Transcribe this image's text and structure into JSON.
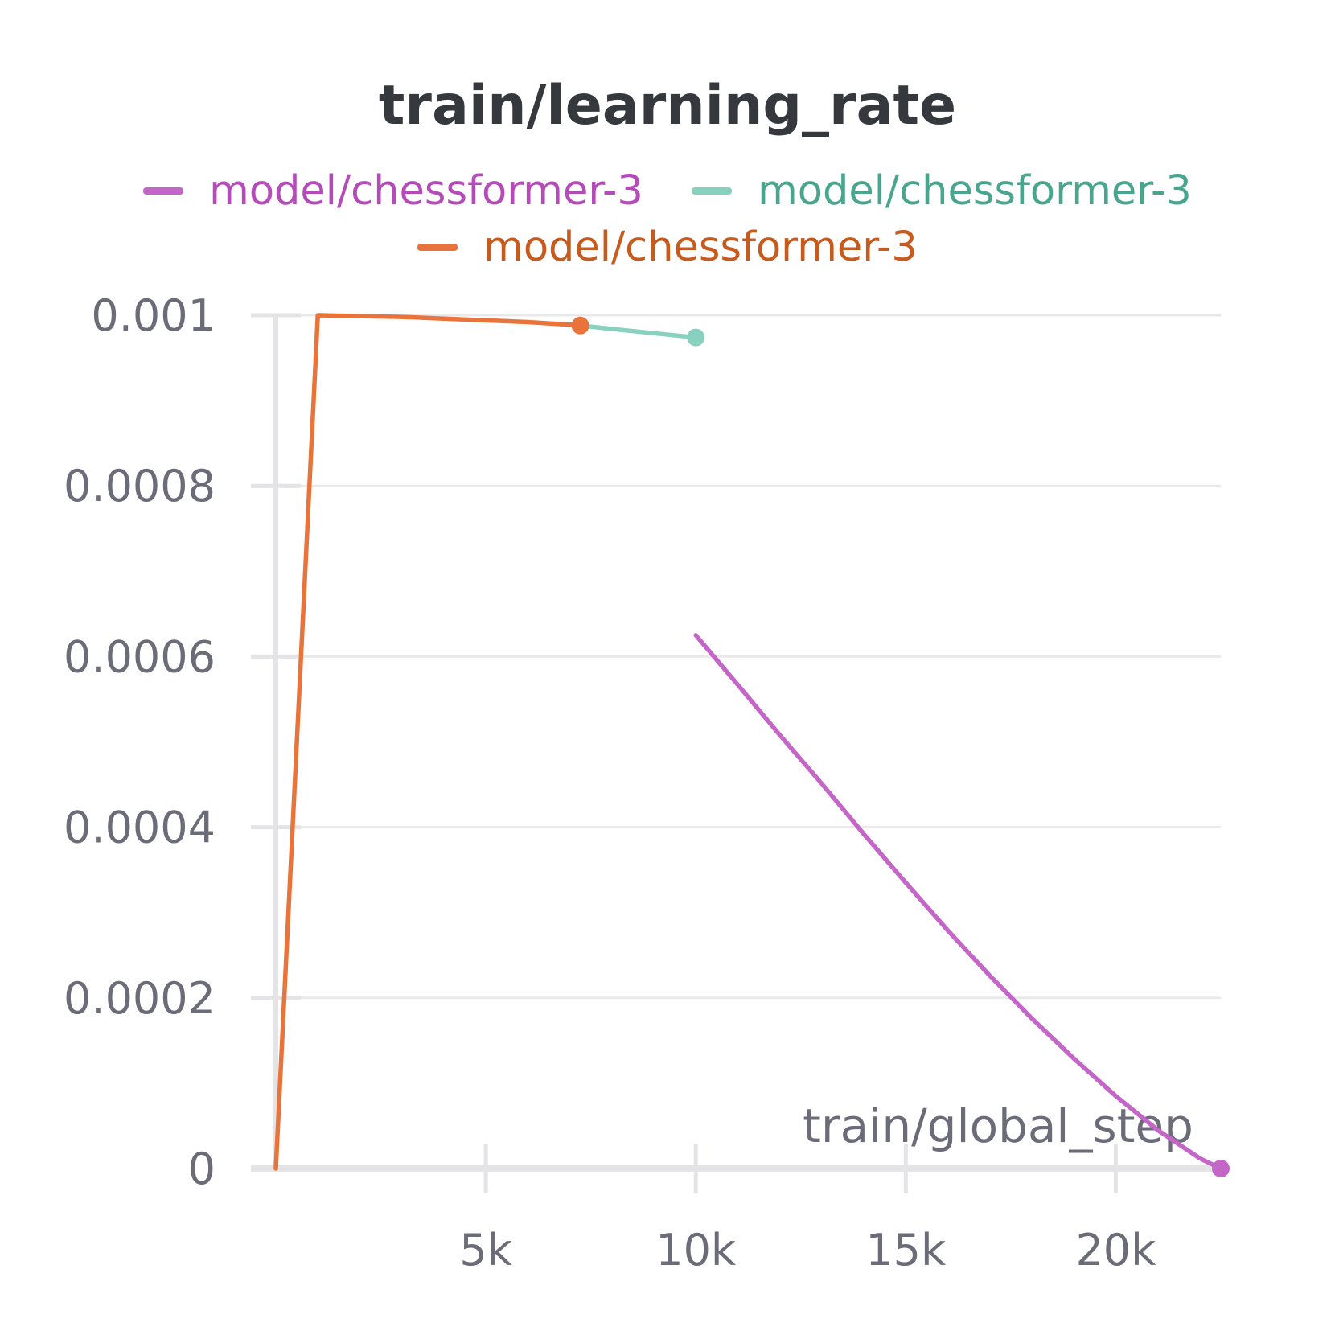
{
  "chart_data": {
    "type": "line",
    "title": "train/learning_rate",
    "xlabel": "train/global_step",
    "ylabel": "",
    "xlim": [
      0,
      22500
    ],
    "ylim": [
      0,
      0.001
    ],
    "x_ticks": [
      {
        "value": 5000,
        "label": "5k"
      },
      {
        "value": 10000,
        "label": "10k"
      },
      {
        "value": 15000,
        "label": "15k"
      },
      {
        "value": 20000,
        "label": "20k"
      }
    ],
    "y_ticks": [
      {
        "value": 0,
        "label": "0"
      },
      {
        "value": 0.0002,
        "label": "0.0002"
      },
      {
        "value": 0.0004,
        "label": "0.0004"
      },
      {
        "value": 0.0006,
        "label": "0.0006"
      },
      {
        "value": 0.0008,
        "label": "0.0008"
      },
      {
        "value": 0.001,
        "label": "0.001"
      }
    ],
    "grid": true,
    "legend_position": "top-center",
    "series": [
      {
        "name": "model/chessformer-3",
        "color": "#c466c8",
        "label_color": "#b44bb8",
        "end_marker": true,
        "x": [
          10000,
          11000,
          12000,
          13000,
          14000,
          15000,
          16000,
          17000,
          18000,
          19000,
          20000,
          21000,
          22000,
          22500
        ],
        "y": [
          0.000625,
          0.000567,
          0.000508,
          0.000451,
          0.000392,
          0.000335,
          0.000279,
          0.000226,
          0.000176,
          0.000129,
          8.5e-05,
          4.5e-05,
          1.2e-05,
          0.0
        ]
      },
      {
        "name": "model/chessformer-3",
        "color": "#88d1be",
        "label_color": "#4aa58e",
        "end_marker": true,
        "x": [
          7250,
          8000,
          9000,
          10000
        ],
        "y": [
          0.000988,
          0.000984,
          0.000979,
          0.000974
        ]
      },
      {
        "name": "model/chessformer-3",
        "color": "#e8743b",
        "label_color": "#c75a1d",
        "end_marker": true,
        "x": [
          0,
          1000,
          2000,
          3000,
          4000,
          5000,
          6000,
          7000,
          7250
        ],
        "y": [
          0.0,
          0.001,
          0.000999,
          0.000998,
          0.000996,
          0.000994,
          0.000992,
          0.000989,
          0.000988
        ]
      }
    ]
  }
}
